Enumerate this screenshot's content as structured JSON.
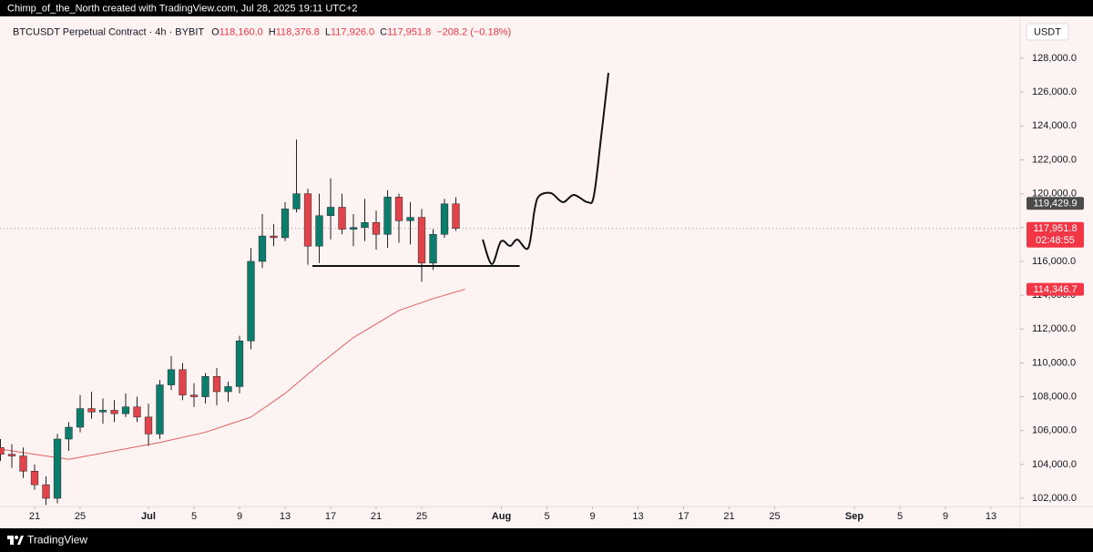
{
  "header": {
    "text": "Chimp_of_the_North created with TradingView.com, Jul 28, 2025 19:11 UTC+2"
  },
  "footer": {
    "brand": "TradingView"
  },
  "chart_data": {
    "type": "candlestick",
    "symbol": "BTCUSDT Perpetual Contract · 4h · BYBIT",
    "legend_fields": [
      {
        "key": "O",
        "value": "118,160.0"
      },
      {
        "key": "H",
        "value": "118,376.8"
      },
      {
        "key": "L",
        "value": "117,926.0"
      },
      {
        "key": "C",
        "value": "117,951.8"
      },
      {
        "key": "",
        "value": "−208.2 (−0.18%)"
      }
    ],
    "currency": "USDT",
    "up_color": "#0b7d6c",
    "down_color": "#e0434a",
    "x": [
      17,
      18,
      19,
      20,
      21,
      22,
      23,
      24,
      25,
      26,
      27,
      28,
      29,
      30,
      31,
      32,
      33,
      34,
      35,
      36,
      37,
      38,
      39,
      40,
      41,
      42,
      43,
      44,
      45,
      46,
      47,
      48,
      49,
      50,
      51,
      52,
      53,
      54,
      55,
      56,
      57
    ],
    "open": [
      105000,
      104600,
      104500,
      103600,
      102800,
      102000,
      105500,
      106200,
      107300,
      107100,
      107200,
      107000,
      107400,
      106800,
      105800,
      108700,
      109600,
      108100,
      108000,
      109200,
      108300,
      108600,
      111300,
      116000,
      117500,
      117400,
      119100,
      120000,
      116900,
      118700,
      119200,
      117900,
      118000,
      118300,
      117600,
      119800,
      118400,
      118600,
      115900,
      117600,
      119400
    ],
    "high": [
      105500,
      105200,
      105000,
      104000,
      103300,
      105800,
      106500,
      108100,
      108300,
      107900,
      107800,
      108200,
      108000,
      107600,
      109000,
      110400,
      110000,
      108800,
      109400,
      109700,
      108900,
      111600,
      116800,
      118800,
      118200,
      119500,
      123200,
      120300,
      120000,
      120900,
      120000,
      118800,
      119700,
      119000,
      120200,
      120000,
      119500,
      119100,
      117900,
      119700,
      119800
    ],
    "low": [
      104200,
      103800,
      103200,
      102500,
      101600,
      101700,
      104800,
      105900,
      106700,
      106400,
      106500,
      106800,
      106500,
      105100,
      105500,
      108400,
      107800,
      107400,
      107600,
      107500,
      107700,
      108200,
      110800,
      115600,
      116900,
      117200,
      118900,
      115800,
      115900,
      117300,
      117600,
      116900,
      117200,
      116700,
      116800,
      117100,
      117000,
      114800,
      115500,
      117400,
      117800
    ],
    "close": [
      104600,
      104500,
      103600,
      102800,
      102000,
      105500,
      106200,
      107300,
      107100,
      107200,
      107000,
      107400,
      106800,
      105800,
      108700,
      109600,
      108100,
      108000,
      109200,
      108300,
      108600,
      111300,
      116000,
      117500,
      117400,
      119100,
      120000,
      116900,
      118700,
      119200,
      117900,
      118000,
      118300,
      117600,
      119800,
      118400,
      118600,
      115900,
      117600,
      119400,
      117951.8
    ],
    "moving_average": {
      "color": "#e06060",
      "x": [
        17,
        20,
        23,
        27,
        31,
        35,
        39,
        42,
        45,
        48,
        52,
        55,
        57.8
      ],
      "values": [
        104900,
        104600,
        104300,
        104800,
        105300,
        105900,
        106800,
        108200,
        109900,
        111500,
        113100,
        113800,
        114350
      ]
    },
    "level_line": {
      "color": "#111111",
      "value": 115730,
      "x": [
        44.4,
        62.6
      ]
    },
    "projection": {
      "color": "#111111",
      "x": [
        59.36,
        60.16,
        60.96,
        61.76,
        62.4,
        63.36,
        63.92,
        64.32,
        65.36,
        66.4,
        67.36,
        68.56,
        69.12,
        69.76,
        70.4
      ],
      "values": [
        117290,
        115840,
        117180,
        116910,
        117290,
        116800,
        119070,
        119870,
        120030,
        119500,
        119930,
        119500,
        119870,
        123370,
        127140
      ]
    },
    "price_labels": [
      {
        "value": 119429.9,
        "label": "119,429.9",
        "color": "#4a4a4a"
      },
      {
        "value": 117951.8,
        "label": "117,951.8",
        "countdown": "02:48:55",
        "color": "#f23645"
      },
      {
        "value": 114346.7,
        "label": "114,346.7",
        "color": "#f23645"
      }
    ],
    "ylim": [
      101500,
      130500
    ],
    "yticks": [
      {
        "value": 102000,
        "label": "102,000.0"
      },
      {
        "value": 104000,
        "label": "104,000.0"
      },
      {
        "value": 106000,
        "label": "106,000.0"
      },
      {
        "value": 108000,
        "label": "108,000.0"
      },
      {
        "value": 110000,
        "label": "110,000.0"
      },
      {
        "value": 112000,
        "label": "112,000.0"
      },
      {
        "value": 114000,
        "label": "114,000.0"
      },
      {
        "value": 116000,
        "label": "116,000.0"
      },
      {
        "value": 118000,
        "label": "118,000.0"
      },
      {
        "value": 120000,
        "label": "120,000.0"
      },
      {
        "value": 122000,
        "label": "122,000.0"
      },
      {
        "value": 124000,
        "label": "124,000.0"
      },
      {
        "value": 126000,
        "label": "126,000.0"
      },
      {
        "value": 128000,
        "label": "128,000.0"
      }
    ],
    "xlim": [
      16.96,
      106.56
    ],
    "xticks": [
      {
        "value": 20,
        "label": "21"
      },
      {
        "value": 24,
        "label": "25"
      },
      {
        "value": 30,
        "label": "Jul"
      },
      {
        "value": 34,
        "label": "5"
      },
      {
        "value": 38,
        "label": "9"
      },
      {
        "value": 42,
        "label": "13"
      },
      {
        "value": 46,
        "label": "17"
      },
      {
        "value": 50,
        "label": "21"
      },
      {
        "value": 54,
        "label": "25"
      },
      {
        "value": 61,
        "label": "Aug"
      },
      {
        "value": 65,
        "label": "5"
      },
      {
        "value": 69,
        "label": "9"
      },
      {
        "value": 73,
        "label": "13"
      },
      {
        "value": 77,
        "label": "17"
      },
      {
        "value": 81,
        "label": "21"
      },
      {
        "value": 85,
        "label": "25"
      },
      {
        "value": 92,
        "label": "Sep"
      },
      {
        "value": 96,
        "label": "5"
      },
      {
        "value": 100,
        "label": "9"
      },
      {
        "value": 104,
        "label": "13"
      }
    ],
    "grid": false
  }
}
